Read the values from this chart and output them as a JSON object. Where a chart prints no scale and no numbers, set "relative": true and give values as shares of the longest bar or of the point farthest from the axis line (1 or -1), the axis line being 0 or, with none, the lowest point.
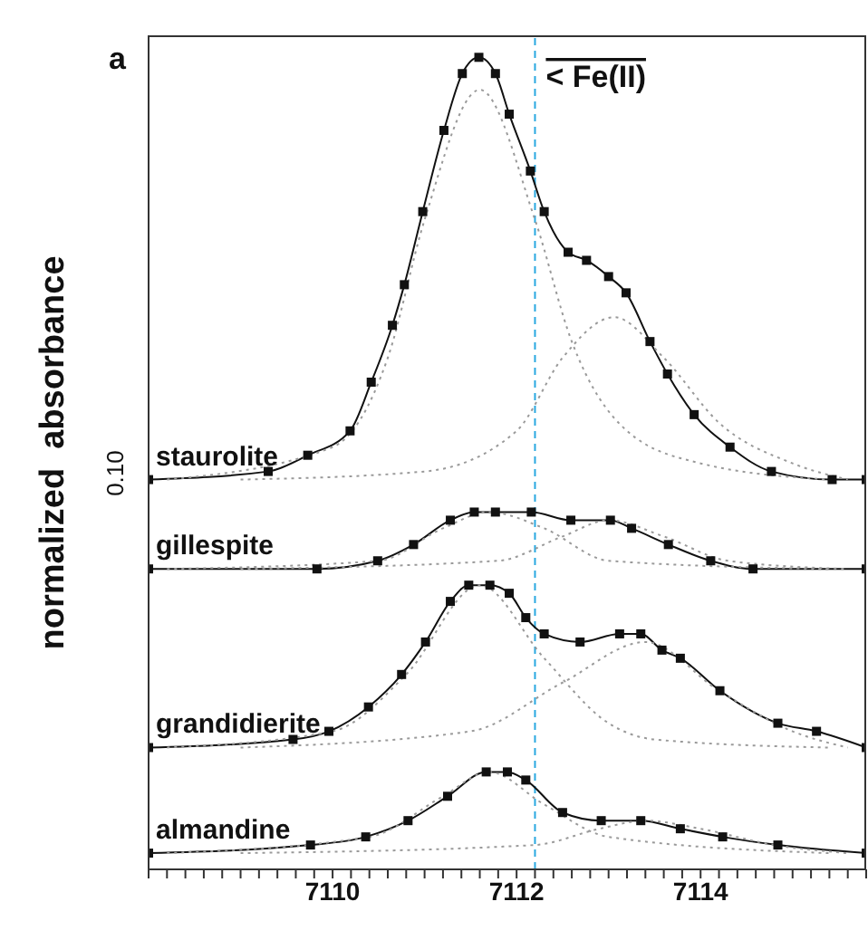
{
  "chart_data": {
    "type": "line",
    "title": "a",
    "ylabel": "normalized  absorbance",
    "relative": true,
    "marker": "square",
    "line_style": "solid",
    "legend": false,
    "xlim": [
      7108,
      7115.8
    ],
    "xticks": [
      {
        "value": 7108,
        "label": null
      },
      {
        "value": 7108.2,
        "label": null
      },
      {
        "value": 7108.4,
        "label": null
      },
      {
        "value": 7108.6,
        "label": null
      },
      {
        "value": 7108.8,
        "label": null
      },
      {
        "value": 7109,
        "label": null
      },
      {
        "value": 7109.2,
        "label": null
      },
      {
        "value": 7109.4,
        "label": null
      },
      {
        "value": 7109.6,
        "label": null
      },
      {
        "value": 7109.8,
        "label": null
      },
      7110,
      {
        "value": 7110.2,
        "label": null
      },
      {
        "value": 7110.4,
        "label": null
      },
      {
        "value": 7110.6,
        "label": null
      },
      {
        "value": 7110.8,
        "label": null
      },
      {
        "value": 7111,
        "label": null
      },
      {
        "value": 7111.2,
        "label": null
      },
      {
        "value": 7111.4,
        "label": null
      },
      {
        "value": 7111.6,
        "label": null
      },
      {
        "value": 7111.8,
        "label": null
      },
      7112,
      {
        "value": 7112.2,
        "label": null
      },
      {
        "value": 7112.4,
        "label": null
      },
      {
        "value": 7112.6,
        "label": null
      },
      {
        "value": 7112.8,
        "label": null
      },
      {
        "value": 7113,
        "label": null
      },
      {
        "value": 7113.2,
        "label": null
      },
      {
        "value": 7113.4,
        "label": null
      },
      {
        "value": 7113.6,
        "label": null
      },
      {
        "value": 7113.8,
        "label": null
      },
      7114,
      {
        "value": 7114.2,
        "label": null
      },
      {
        "value": 7114.4,
        "label": null
      },
      {
        "value": 7114.6,
        "label": null
      },
      {
        "value": 7114.8,
        "label": null
      },
      {
        "value": 7115,
        "label": null
      },
      {
        "value": 7115.2,
        "label": null
      },
      {
        "value": 7115.4,
        "label": null
      },
      {
        "value": 7115.6,
        "label": null
      },
      {
        "value": 7115.8,
        "label": null
      }
    ],
    "annotations": [
      "0.10"
    ],
    "ref_lines": [
      {
        "axis": "x",
        "value": 7112.2,
        "label": "< Fe(II)",
        "color": "#29a8e0",
        "line_style": "dashed"
      }
    ],
    "series": [
      {
        "name": "staurolite",
        "color": "#111111",
        "x": [
          7108,
          7109.3,
          7109.73,
          7110.19,
          7110.42,
          7110.65,
          7110.78,
          7110.98,
          7111.21,
          7111.41,
          7111.59,
          7111.77,
          7111.92,
          7112.15,
          7112.3,
          7112.56,
          7112.76,
          7113,
          7113.19,
          7113.45,
          7113.64,
          7113.93,
          7114.32,
          7114.77,
          7115.43,
          7115.8
        ],
        "values": [
          0.48,
          0.49,
          0.51,
          0.54,
          0.6,
          0.67,
          0.72,
          0.81,
          0.91,
          0.98,
          1,
          0.98,
          0.93,
          0.86,
          0.81,
          0.76,
          0.75,
          0.73,
          0.71,
          0.65,
          0.61,
          0.56,
          0.52,
          0.49,
          0.48,
          0.48
        ]
      },
      {
        "name": "gillespite",
        "color": "#111111",
        "x": [
          7108,
          7109.83,
          7110.49,
          7110.88,
          7111.28,
          7111.54,
          7111.77,
          7112.16,
          7112.59,
          7113.02,
          7113.25,
          7113.65,
          7114.11,
          7114.57,
          7115.8
        ],
        "values": [
          0.37,
          0.37,
          0.38,
          0.4,
          0.43,
          0.44,
          0.44,
          0.44,
          0.43,
          0.43,
          0.42,
          0.4,
          0.38,
          0.37,
          0.37
        ]
      },
      {
        "name": "grandidierite",
        "color": "#111111",
        "x": [
          7108,
          7109.57,
          7109.96,
          7110.39,
          7110.75,
          7111.01,
          7111.28,
          7111.48,
          7111.71,
          7111.92,
          7112.1,
          7112.3,
          7112.69,
          7113.12,
          7113.35,
          7113.58,
          7113.78,
          7114.21,
          7114.84,
          7115.26,
          7115.8
        ],
        "values": [
          0.15,
          0.16,
          0.17,
          0.2,
          0.24,
          0.28,
          0.33,
          0.35,
          0.35,
          0.34,
          0.31,
          0.29,
          0.28,
          0.29,
          0.29,
          0.27,
          0.26,
          0.22,
          0.18,
          0.17,
          0.15
        ]
      },
      {
        "name": "almandine",
        "color": "#111111",
        "x": [
          7108,
          7109.76,
          7110.36,
          7110.82,
          7111.25,
          7111.67,
          7111.9,
          7112.1,
          7112.5,
          7112.92,
          7113.35,
          7113.78,
          7114.24,
          7114.84,
          7115.8
        ],
        "values": [
          0.02,
          0.03,
          0.04,
          0.06,
          0.09,
          0.12,
          0.12,
          0.11,
          0.07,
          0.06,
          0.06,
          0.05,
          0.04,
          0.03,
          0.02
        ]
      },
      {
        "color": "#9a9a9a",
        "marker": "none",
        "line_style": "dotted",
        "x": [
          7108.2,
          7110,
          7110.6,
          7111,
          7111.6,
          7112.2,
          7112.6,
          7113.2,
          7114,
          7115.4
        ],
        "values": [
          0.48,
          0.52,
          0.63,
          0.8,
          0.96,
          0.8,
          0.65,
          0.54,
          0.5,
          0.48
        ]
      },
      {
        "color": "#9a9a9a",
        "marker": "none",
        "line_style": "dotted",
        "x": [
          7109,
          7111,
          7112,
          7112.5,
          7113.06,
          7113.6,
          7114.2,
          7115,
          7115.6
        ],
        "values": [
          0.48,
          0.49,
          0.54,
          0.63,
          0.68,
          0.63,
          0.55,
          0.5,
          0.48
        ]
      },
      {
        "color": "#9a9a9a",
        "marker": "none",
        "line_style": "dotted",
        "x": [
          7108.2,
          7110.5,
          7111.2,
          7111.7,
          7112.3,
          7113,
          7115.4
        ],
        "values": [
          0.37,
          0.38,
          0.42,
          0.44,
          0.42,
          0.38,
          0.37
        ]
      },
      {
        "color": "#9a9a9a",
        "marker": "none",
        "line_style": "dotted",
        "x": [
          7109,
          7111.8,
          7112.5,
          7113,
          7113.6,
          7114.3,
          7115.6
        ],
        "values": [
          0.37,
          0.38,
          0.41,
          0.43,
          0.41,
          0.38,
          0.37
        ]
      },
      {
        "color": "#9a9a9a",
        "marker": "none",
        "line_style": "dotted",
        "x": [
          7108.2,
          7110,
          7110.8,
          7111.6,
          7112.3,
          7113,
          7113.5,
          7115.4
        ],
        "values": [
          0.15,
          0.17,
          0.24,
          0.35,
          0.26,
          0.18,
          0.16,
          0.15
        ]
      },
      {
        "color": "#9a9a9a",
        "marker": "none",
        "line_style": "dotted",
        "x": [
          7109,
          7111.5,
          7112.5,
          7113.4,
          7114.2,
          7115,
          7115.6
        ],
        "values": [
          0.15,
          0.17,
          0.23,
          0.28,
          0.22,
          0.17,
          0.15
        ]
      },
      {
        "color": "#9a9a9a",
        "marker": "none",
        "line_style": "dotted",
        "x": [
          7108.2,
          7110.4,
          7111.2,
          7111.7,
          7112.3,
          7113,
          7115.4
        ],
        "values": [
          0.02,
          0.04,
          0.09,
          0.12,
          0.08,
          0.04,
          0.02
        ]
      },
      {
        "color": "#9a9a9a",
        "marker": "none",
        "line_style": "dotted",
        "x": [
          7109,
          7112.2,
          7112.9,
          7113.4,
          7114,
          7114.8,
          7115.6
        ],
        "values": [
          0.02,
          0.03,
          0.05,
          0.06,
          0.05,
          0.03,
          0.02
        ]
      }
    ]
  }
}
